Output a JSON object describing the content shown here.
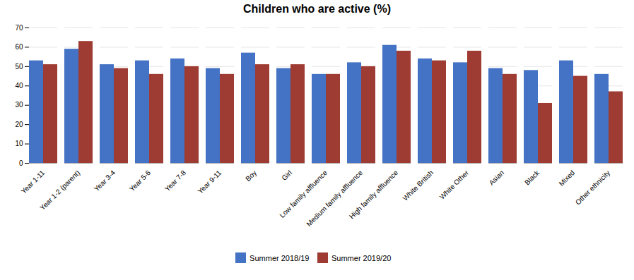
{
  "chart_data": {
    "type": "bar",
    "title": "Children who are active (%)",
    "categories": [
      "Year 1-11",
      "Year 1-2 (parent)",
      "Year 3-4",
      "Year 5-6",
      "Year 7-8",
      "Year 9-11",
      "Boy",
      "Girl",
      "Low family affluence",
      "Medium family affluence",
      "High family affluence",
      "White British",
      "White Other",
      "Asian",
      "Black",
      "Mixed",
      "Other ethnicity"
    ],
    "series": [
      {
        "name": "Summer 2018/19",
        "color": "#4472C4",
        "values": [
          53,
          59,
          51,
          53,
          54,
          49,
          57,
          49,
          46,
          52,
          61,
          54,
          52,
          49,
          48,
          53,
          46
        ]
      },
      {
        "name": "Summer 2019/20",
        "color": "#9E3B32",
        "values": [
          51,
          63,
          49,
          46,
          50,
          46,
          51,
          51,
          46,
          50,
          58,
          53,
          58,
          46,
          31,
          45,
          37
        ]
      }
    ],
    "ylim": [
      0,
      70
    ],
    "yticks": [
      0,
      10,
      20,
      30,
      40,
      50,
      60,
      70
    ],
    "grid": true,
    "legend": "bottom"
  }
}
